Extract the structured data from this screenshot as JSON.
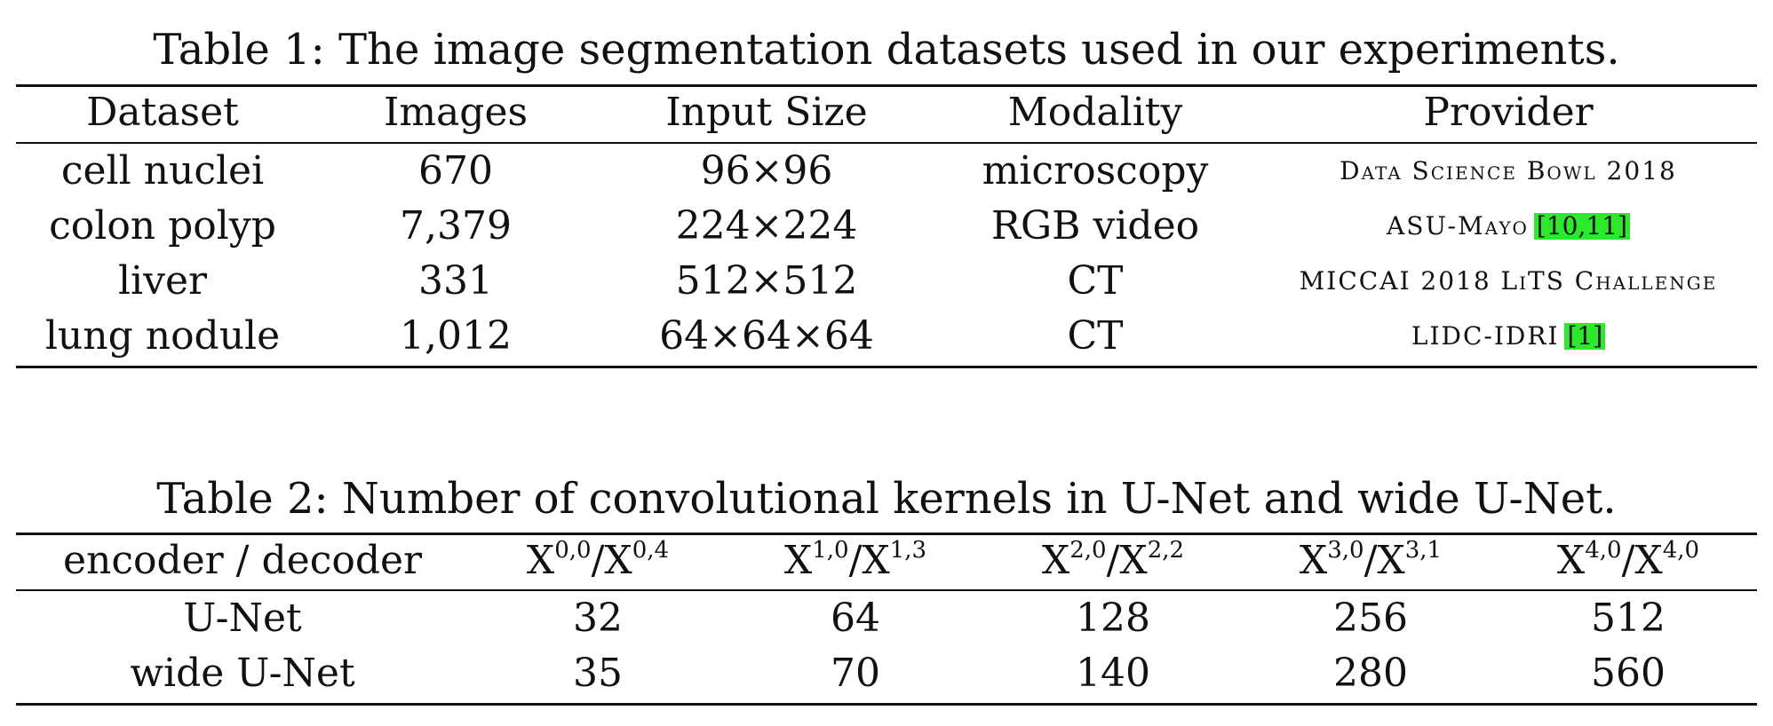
{
  "table1": {
    "caption": "Table 1: The image segmentation datasets used in our experiments.",
    "headers": [
      "Dataset",
      "Images",
      "Input Size",
      "Modality",
      "Provider"
    ],
    "rows": [
      {
        "dataset": "cell nuclei",
        "images": "670",
        "input_size": "96×96",
        "modality": "microscopy",
        "provider": "Data Science Bowl 2018",
        "refs": ""
      },
      {
        "dataset": "colon polyp",
        "images": "7,379",
        "input_size": "224×224",
        "modality": "RGB video",
        "provider": "ASU-Mayo",
        "refs": "[10,11]"
      },
      {
        "dataset": "liver",
        "images": "331",
        "input_size": "512×512",
        "modality": "CT",
        "provider": "MICCAI 2018 LiTS Challenge",
        "refs": ""
      },
      {
        "dataset": "lung nodule",
        "images": "1,012",
        "input_size": "64×64×64",
        "modality": "CT",
        "provider": "LIDC-IDRI",
        "refs": "[1]"
      }
    ]
  },
  "table2": {
    "caption": "Table 2: Number of convolutional kernels in U-Net and wide U-Net.",
    "header_label": "encoder / decoder",
    "columns": [
      {
        "base": "X",
        "sup1": "0,0",
        "sup2": "0,4"
      },
      {
        "base": "X",
        "sup1": "1,0",
        "sup2": "1,3"
      },
      {
        "base": "X",
        "sup1": "2,0",
        "sup2": "2,2"
      },
      {
        "base": "X",
        "sup1": "3,0",
        "sup2": "3,1"
      },
      {
        "base": "X",
        "sup1": "4,0",
        "sup2": "4,0"
      }
    ],
    "rows": [
      {
        "name": "U-Net",
        "values": [
          "32",
          "64",
          "128",
          "256",
          "512"
        ]
      },
      {
        "name": "wide U-Net",
        "values": [
          "35",
          "70",
          "140",
          "280",
          "560"
        ]
      }
    ]
  }
}
